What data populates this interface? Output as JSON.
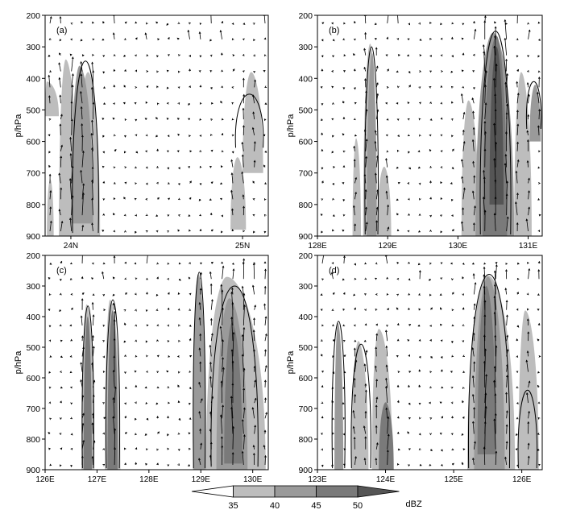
{
  "chart_data": [
    {
      "type": "heatmap",
      "panel_label": "(a)",
      "ylabel": "p/hPa",
      "ylim": [
        900,
        200
      ],
      "yticks": [
        200,
        300,
        400,
        500,
        600,
        700,
        800,
        900
      ],
      "xlim": [
        23.85,
        25.15
      ],
      "xticks": [
        {
          "value": 24.0,
          "label": "24N"
        },
        {
          "value": 25.0,
          "label": "25N"
        }
      ],
      "grid": false,
      "cells": [
        {
          "x": 23.97,
          "x0": 23.93,
          "x1": 24.04,
          "top": 340,
          "bottom": 900,
          "level": 35
        },
        {
          "x": 24.1,
          "x0": 24.03,
          "x1": 24.17,
          "top": 380,
          "bottom": 900,
          "level": 35
        },
        {
          "x": 24.05,
          "x0": 24.0,
          "x1": 24.13,
          "top": 360,
          "bottom": 860,
          "level": 40
        },
        {
          "x": 23.86,
          "x0": 23.85,
          "x1": 23.93,
          "top": 410,
          "bottom": 520,
          "level": 35
        },
        {
          "x": 23.88,
          "x0": 23.86,
          "x1": 23.9,
          "top": 720,
          "bottom": 900,
          "level": 35
        },
        {
          "x": 25.05,
          "x0": 25.0,
          "x1": 25.12,
          "top": 380,
          "bottom": 700,
          "level": 35
        },
        {
          "x": 24.97,
          "x0": 24.93,
          "x1": 25.02,
          "top": 650,
          "bottom": 880,
          "level": 35
        }
      ],
      "contours": [
        {
          "x0": 24.01,
          "x1": 24.16,
          "top": 345,
          "bottom": 890
        },
        {
          "x0": 24.96,
          "x1": 25.12,
          "top": 450,
          "bottom": 620
        }
      ]
    },
    {
      "type": "heatmap",
      "panel_label": "(b)",
      "ylabel": "p/hPa",
      "ylim": [
        900,
        200
      ],
      "yticks": [
        200,
        300,
        400,
        500,
        600,
        700,
        800,
        900
      ],
      "xlim": [
        128.0,
        131.2
      ],
      "xticks": [
        {
          "value": 128.0,
          "label": "128E"
        },
        {
          "value": 129.0,
          "label": "129E"
        },
        {
          "value": 130.0,
          "label": "130E"
        },
        {
          "value": 131.0,
          "label": "131E"
        }
      ],
      "grid": false,
      "cells": [
        {
          "x": 128.75,
          "x0": 128.65,
          "x1": 128.85,
          "top": 290,
          "bottom": 900,
          "level": 35
        },
        {
          "x": 128.78,
          "x0": 128.7,
          "x1": 128.84,
          "top": 320,
          "bottom": 900,
          "level": 40
        },
        {
          "x": 128.55,
          "x0": 128.5,
          "x1": 128.62,
          "top": 590,
          "bottom": 900,
          "level": 35
        },
        {
          "x": 128.95,
          "x0": 128.85,
          "x1": 129.05,
          "top": 680,
          "bottom": 900,
          "level": 35
        },
        {
          "x": 130.15,
          "x0": 130.05,
          "x1": 130.3,
          "top": 470,
          "bottom": 900,
          "level": 35
        },
        {
          "x": 130.5,
          "x0": 130.25,
          "x1": 130.8,
          "top": 255,
          "bottom": 900,
          "level": 40
        },
        {
          "x": 130.55,
          "x0": 130.35,
          "x1": 130.7,
          "top": 265,
          "bottom": 900,
          "level": 45
        },
        {
          "x": 130.55,
          "x0": 130.45,
          "x1": 130.65,
          "top": 300,
          "bottom": 800,
          "level": 50
        },
        {
          "x": 130.9,
          "x0": 130.8,
          "x1": 131.05,
          "top": 380,
          "bottom": 900,
          "level": 35
        },
        {
          "x": 131.1,
          "x0": 131.02,
          "x1": 131.18,
          "top": 420,
          "bottom": 600,
          "level": 40
        }
      ],
      "contours": [
        {
          "x0": 128.68,
          "x1": 128.86,
          "top": 300,
          "bottom": 895
        },
        {
          "x0": 130.32,
          "x1": 130.75,
          "top": 250,
          "bottom": 895
        },
        {
          "x0": 130.98,
          "x1": 131.18,
          "top": 410,
          "bottom": 560
        }
      ]
    },
    {
      "type": "heatmap",
      "panel_label": "(c)",
      "ylabel": "p/hPa",
      "ylim": [
        900,
        200
      ],
      "yticks": [
        200,
        300,
        400,
        500,
        600,
        700,
        800,
        900
      ],
      "xlim": [
        126.0,
        130.3
      ],
      "xticks": [
        {
          "value": 126.0,
          "label": "126E"
        },
        {
          "value": 127.0,
          "label": "127E"
        },
        {
          "value": 128.0,
          "label": "128E"
        },
        {
          "value": 129.0,
          "label": "129E"
        },
        {
          "value": 130.0,
          "label": "130E"
        }
      ],
      "grid": false,
      "cells": [
        {
          "x": 126.8,
          "x0": 126.7,
          "x1": 126.95,
          "top": 360,
          "bottom": 900,
          "level": 35
        },
        {
          "x": 126.82,
          "x0": 126.74,
          "x1": 126.9,
          "top": 400,
          "bottom": 900,
          "level": 45
        },
        {
          "x": 127.25,
          "x0": 127.15,
          "x1": 127.45,
          "top": 345,
          "bottom": 900,
          "level": 35
        },
        {
          "x": 127.3,
          "x0": 127.2,
          "x1": 127.4,
          "top": 380,
          "bottom": 900,
          "level": 45
        },
        {
          "x": 128.95,
          "x0": 128.85,
          "x1": 129.1,
          "top": 260,
          "bottom": 900,
          "level": 40
        },
        {
          "x": 129.5,
          "x0": 129.1,
          "x1": 130.25,
          "top": 270,
          "bottom": 900,
          "level": 35
        },
        {
          "x": 129.55,
          "x0": 129.3,
          "x1": 129.9,
          "top": 340,
          "bottom": 900,
          "level": 40
        },
        {
          "x": 129.6,
          "x0": 129.45,
          "x1": 129.8,
          "top": 420,
          "bottom": 880,
          "level": 45
        }
      ],
      "contours": [
        {
          "x0": 126.72,
          "x1": 126.93,
          "top": 365,
          "bottom": 895
        },
        {
          "x0": 127.18,
          "x1": 127.43,
          "top": 345,
          "bottom": 895
        },
        {
          "x0": 128.86,
          "x1": 129.08,
          "top": 255,
          "bottom": 895
        },
        {
          "x0": 129.2,
          "x1": 130.1,
          "top": 300,
          "bottom": 890
        }
      ]
    },
    {
      "type": "heatmap",
      "panel_label": "(d)",
      "ylabel": "p/hPa",
      "ylim": [
        900,
        200
      ],
      "yticks": [
        200,
        300,
        400,
        500,
        600,
        700,
        800,
        900
      ],
      "xlim": [
        123.0,
        126.3
      ],
      "xticks": [
        {
          "value": 123.0,
          "label": "123E"
        },
        {
          "value": 124.0,
          "label": "124E"
        },
        {
          "value": 125.0,
          "label": "125E"
        },
        {
          "value": 126.0,
          "label": "126E"
        }
      ],
      "grid": false,
      "cells": [
        {
          "x": 123.3,
          "x0": 123.25,
          "x1": 123.38,
          "top": 420,
          "bottom": 900,
          "level": 40
        },
        {
          "x": 123.6,
          "x0": 123.5,
          "x1": 123.75,
          "top": 480,
          "bottom": 900,
          "level": 35
        },
        {
          "x": 123.9,
          "x0": 123.8,
          "x1": 124.1,
          "top": 440,
          "bottom": 900,
          "level": 35
        },
        {
          "x": 124.0,
          "x0": 123.9,
          "x1": 124.12,
          "top": 680,
          "bottom": 900,
          "level": 45
        },
        {
          "x": 125.5,
          "x0": 125.2,
          "x1": 125.9,
          "top": 265,
          "bottom": 900,
          "level": 35
        },
        {
          "x": 125.5,
          "x0": 125.3,
          "x1": 125.75,
          "top": 270,
          "bottom": 900,
          "level": 40
        },
        {
          "x": 125.48,
          "x0": 125.35,
          "x1": 125.62,
          "top": 300,
          "bottom": 850,
          "level": 45
        },
        {
          "x": 126.05,
          "x0": 125.95,
          "x1": 126.25,
          "top": 380,
          "bottom": 900,
          "level": 35
        }
      ],
      "contours": [
        {
          "x0": 123.22,
          "x1": 123.4,
          "top": 415,
          "bottom": 895
        },
        {
          "x0": 123.5,
          "x1": 123.78,
          "top": 490,
          "bottom": 895
        },
        {
          "x0": 125.22,
          "x1": 125.82,
          "top": 262,
          "bottom": 895
        },
        {
          "x0": 125.95,
          "x1": 126.22,
          "top": 640,
          "bottom": 895
        }
      ]
    }
  ],
  "colorbar": {
    "levels": [
      35,
      40,
      45,
      50
    ],
    "labels": [
      "35",
      "40",
      "45",
      "50"
    ],
    "unit": "dBZ",
    "colors": [
      "#ffffff",
      "#bdbdbd",
      "#9a9a9a",
      "#7a7a7a",
      "#555555"
    ]
  },
  "contour_color": "#000000",
  "vector_color": "#000000"
}
